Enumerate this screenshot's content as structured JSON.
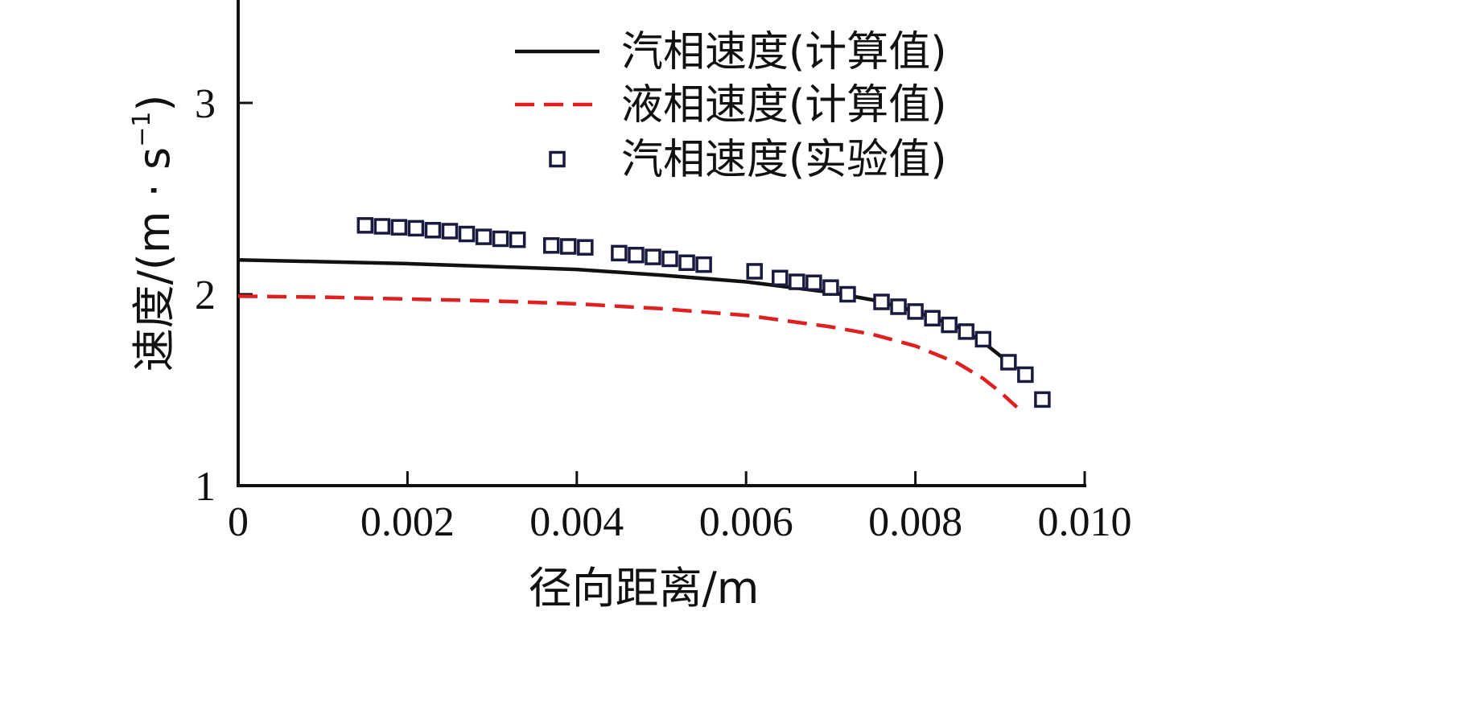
{
  "chart_data": {
    "type": "line",
    "xlabel": "径向距离/m",
    "ylabel_main": "速度/(m · s",
    "ylabel_sup": "−1",
    "ylabel_close": ")",
    "xlim": [
      0,
      0.01
    ],
    "ylim": [
      1,
      3.5
    ],
    "x_ticks": [
      0,
      0.002,
      0.004,
      0.006,
      0.008,
      0.01
    ],
    "x_tick_labels": [
      "0",
      "0.002",
      "0.004",
      "0.006",
      "0.008",
      "0.010"
    ],
    "y_ticks": [
      1,
      2,
      3
    ],
    "y_tick_labels": [
      "1",
      "2",
      "3"
    ],
    "legend_position": "top-right",
    "grid": false,
    "series": [
      {
        "name": "汽相速度(计算值)",
        "kind": "line",
        "style": "solid",
        "color": "#111111",
        "x": [
          0,
          0.001,
          0.002,
          0.003,
          0.004,
          0.005,
          0.006,
          0.007,
          0.0075,
          0.008,
          0.0085,
          0.0088,
          0.009,
          0.0092
        ],
        "y": [
          2.18,
          2.17,
          2.16,
          2.145,
          2.13,
          2.1,
          2.065,
          2.01,
          1.97,
          1.91,
          1.83,
          1.75,
          1.68,
          1.61
        ]
      },
      {
        "name": "液相速度(计算值)",
        "kind": "line",
        "style": "dashed",
        "color": "#e02020",
        "x": [
          0,
          0.001,
          0.002,
          0.003,
          0.004,
          0.005,
          0.006,
          0.007,
          0.0075,
          0.008,
          0.0085,
          0.0088,
          0.009,
          0.0092
        ],
        "y": [
          1.99,
          1.985,
          1.975,
          1.965,
          1.95,
          1.925,
          1.89,
          1.83,
          1.79,
          1.73,
          1.64,
          1.56,
          1.49,
          1.41
        ]
      },
      {
        "name": "汽相速度(实验值)",
        "kind": "scatter",
        "marker": "square",
        "color": "#1a1a3e",
        "x": [
          0.0015,
          0.0017,
          0.0019,
          0.0021,
          0.0023,
          0.0025,
          0.0027,
          0.0029,
          0.0031,
          0.0033,
          0.0037,
          0.0039,
          0.0041,
          0.0045,
          0.0047,
          0.0049,
          0.0051,
          0.0053,
          0.0055,
          0.0061,
          0.0064,
          0.0066,
          0.0068,
          0.007,
          0.0072,
          0.0076,
          0.0078,
          0.008,
          0.0082,
          0.0084,
          0.0086,
          0.0088,
          0.0091,
          0.0093,
          0.0095
        ],
        "y": [
          2.36,
          2.355,
          2.35,
          2.345,
          2.335,
          2.33,
          2.315,
          2.3,
          2.29,
          2.285,
          2.255,
          2.25,
          2.245,
          2.215,
          2.205,
          2.195,
          2.185,
          2.165,
          2.155,
          2.12,
          2.085,
          2.065,
          2.06,
          2.035,
          2.0,
          1.96,
          1.935,
          1.91,
          1.875,
          1.84,
          1.805,
          1.765,
          1.645,
          1.58,
          1.45
        ]
      }
    ]
  }
}
